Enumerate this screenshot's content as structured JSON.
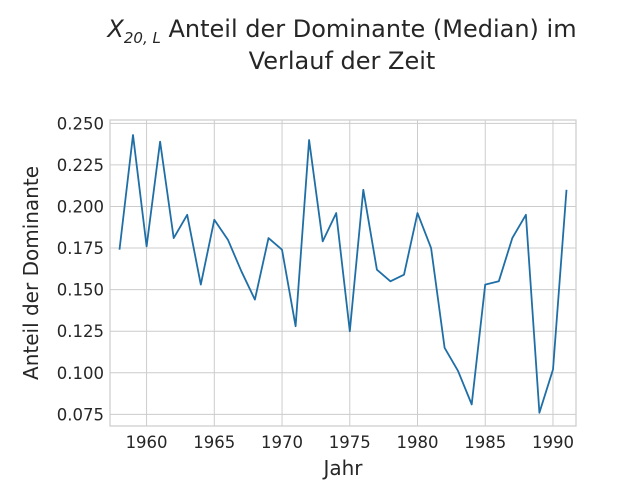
{
  "chart_data": {
    "type": "line",
    "title_math_base": "X",
    "title_math_sub": "20, L",
    "title_line1_rest": " Anteil der Dominante (Median) im",
    "title_line2": "Verlauf der Zeit",
    "xlabel": "Jahr",
    "ylabel": "Anteil der Dominante",
    "xlim": [
      1957.3,
      1991.7
    ],
    "ylim": [
      0.068,
      0.252
    ],
    "x_ticks": [
      1960,
      1965,
      1970,
      1975,
      1980,
      1985,
      1990
    ],
    "y_ticks": [
      0.075,
      0.1,
      0.125,
      0.15,
      0.175,
      0.2,
      0.225,
      0.25
    ],
    "y_tick_labels": [
      "0.075",
      "0.100",
      "0.125",
      "0.150",
      "0.175",
      "0.200",
      "0.225",
      "0.250"
    ],
    "grid": true,
    "series": [
      {
        "color": "#1f6fa6",
        "x": [
          1958,
          1959,
          1960,
          1961,
          1962,
          1963,
          1964,
          1965,
          1966,
          1967,
          1968,
          1969,
          1970,
          1971,
          1972,
          1973,
          1974,
          1975,
          1976,
          1977,
          1978,
          1979,
          1980,
          1981,
          1982,
          1983,
          1984,
          1985,
          1986,
          1987,
          1988,
          1989,
          1990,
          1991
        ],
        "y": [
          0.174,
          0.243,
          0.176,
          0.239,
          0.181,
          0.195,
          0.153,
          0.192,
          0.18,
          0.161,
          0.144,
          0.181,
          0.174,
          0.128,
          0.24,
          0.179,
          0.196,
          0.125,
          0.21,
          0.162,
          0.155,
          0.159,
          0.196,
          0.175,
          0.115,
          0.101,
          0.081,
          0.153,
          0.155,
          0.181,
          0.195,
          0.076,
          0.102,
          0.21
        ]
      }
    ]
  }
}
